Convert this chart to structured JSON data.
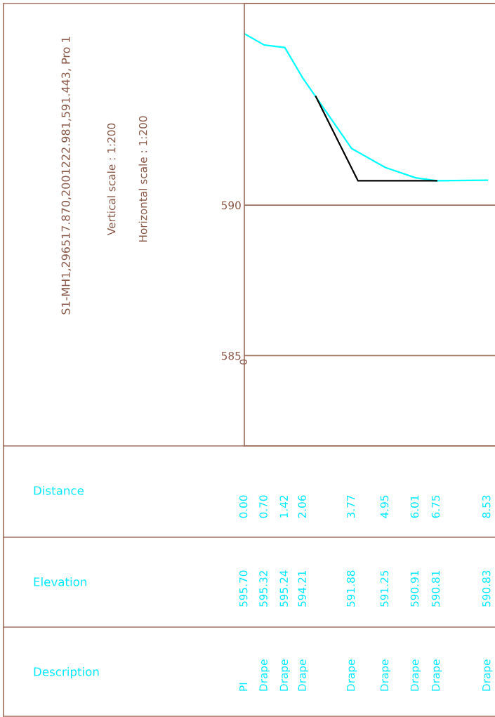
{
  "chart_data": {
    "type": "line",
    "title": "S1-MH1,296517.870,2001222.981,591.443, Pro 1",
    "annotations": [
      "Vertical scale : 1:200",
      "Horizontal scale : 1:200",
      "Distance",
      "Elevation",
      "Description",
      "0",
      "595.70",
      "595.32",
      "595.24",
      "594.21",
      "591.88",
      "591.25",
      "590.91",
      "590.81",
      "590.83",
      "PI",
      "Drape",
      "Drape",
      "Drape",
      "Drape",
      "Drape",
      "Drape",
      "Drape",
      "Drape"
    ],
    "xticks": [
      {
        "value": 0.0,
        "label": "0.00"
      },
      {
        "value": 0.7,
        "label": "0.70"
      },
      {
        "value": 1.42,
        "label": "1.42"
      },
      {
        "value": 2.06,
        "label": "2.06"
      },
      {
        "value": 3.77,
        "label": "3.77"
      },
      {
        "value": 4.95,
        "label": "4.95"
      },
      {
        "value": 6.01,
        "label": "6.01"
      },
      {
        "value": 6.75,
        "label": "6.75"
      },
      {
        "value": 8.53,
        "label": "8.53"
      }
    ],
    "series": [
      {
        "color": "#00ffff",
        "x": [
          0.0,
          0.7,
          1.42,
          2.06,
          3.77,
          4.95,
          6.01,
          6.75,
          8.53
        ],
        "values": [
          595.7,
          595.32,
          595.24,
          594.21,
          591.88,
          591.25,
          590.91,
          590.81,
          590.83
        ]
      },
      {
        "color": "#000000",
        "x": [
          2.51,
          3.99,
          6.75
        ],
        "values": [
          593.61,
          590.81,
          590.81
        ]
      }
    ],
    "xlim": [
      0,
      8.8
    ],
    "ylim": [
      582,
      596.7
    ],
    "yticks": [
      585,
      590
    ],
    "grid": "y"
  }
}
